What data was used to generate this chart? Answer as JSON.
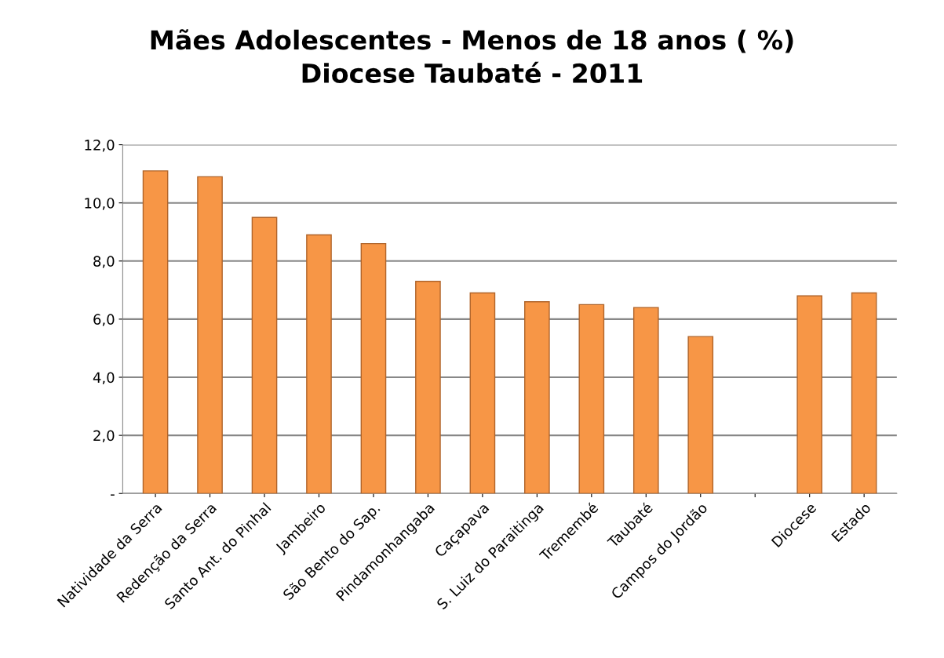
{
  "chart_data": {
    "type": "bar",
    "title": "Mães Adolescentes - Menos de 18 anos ( %)\nDiocese Taubaté - 2011",
    "categories": [
      "Natividade da Serra",
      "Redenção da Serra",
      "Santo Ant. do Pinhal",
      "Jambeiro",
      "São Bento do Sap.",
      "Pindamonhangaba",
      "Caçapava",
      "S. Luiz do Paraitinga",
      "Tremembé",
      "Taubaté",
      "Campos do Jordão",
      null,
      "Diocese",
      "Estado"
    ],
    "values": [
      11.1,
      10.9,
      9.5,
      8.9,
      8.6,
      7.3,
      6.9,
      6.6,
      6.5,
      6.4,
      5.4,
      null,
      6.8,
      6.9
    ],
    "color": "#f79646",
    "ylim": [
      0,
      12
    ],
    "yticks": [
      {
        "value": 0,
        "label": "-"
      },
      {
        "value": 2,
        "label": "2,0"
      },
      {
        "value": 4,
        "label": "4,0"
      },
      {
        "value": 6,
        "label": "6,0"
      },
      {
        "value": 8,
        "label": "8,0"
      },
      {
        "value": 10,
        "label": "10,0"
      },
      {
        "value": 12,
        "label": "12,0"
      }
    ],
    "grid": "y",
    "legend": false
  }
}
